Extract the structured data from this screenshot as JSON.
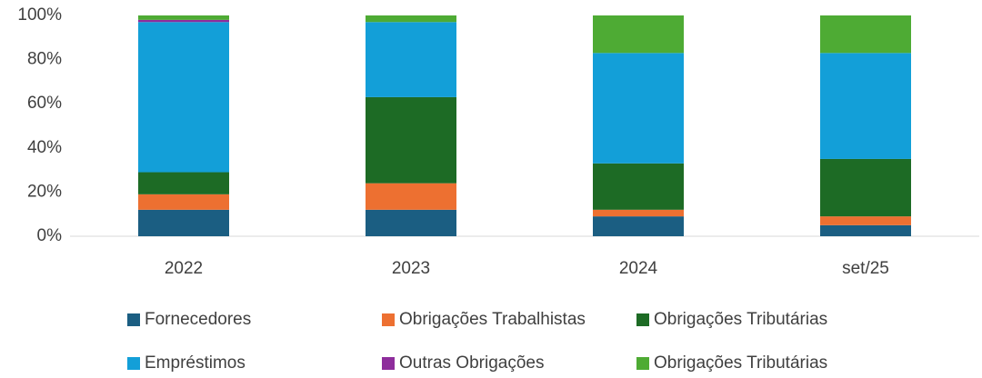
{
  "chart_data": {
    "type": "stacked_bar_100",
    "categories": [
      "2022",
      "2023",
      "2024",
      "set/25"
    ],
    "series": [
      {
        "name": "Fornecedores",
        "color": "#1b5e82",
        "values": [
          12,
          12,
          9,
          5
        ]
      },
      {
        "name": "Obrigações Trabalhistas",
        "color": "#ed7031",
        "values": [
          7,
          12,
          3,
          4
        ]
      },
      {
        "name": "Obrigações Tributárias",
        "color": "#1d6b25",
        "values": [
          10,
          39,
          21,
          26
        ]
      },
      {
        "name": "Empréstimos",
        "color": "#139fd8",
        "values": [
          68,
          34,
          50,
          48
        ]
      },
      {
        "name": "Outras Obrigações",
        "color": "#8e2d9c",
        "values": [
          1,
          0,
          0,
          0
        ]
      },
      {
        "name": "Obrigações Tributárias",
        "color": "#4eab34",
        "values": [
          2,
          3,
          17,
          17
        ]
      }
    ],
    "ylim": [
      0,
      100
    ],
    "yticks": [
      {
        "value": 0,
        "label": "0%"
      },
      {
        "value": 20,
        "label": "20%"
      },
      {
        "value": 40,
        "label": "40%"
      },
      {
        "value": 60,
        "label": "60%"
      },
      {
        "value": 80,
        "label": "80%"
      },
      {
        "value": 100,
        "label": "100%"
      }
    ],
    "grid": false,
    "legend": "bottom"
  }
}
